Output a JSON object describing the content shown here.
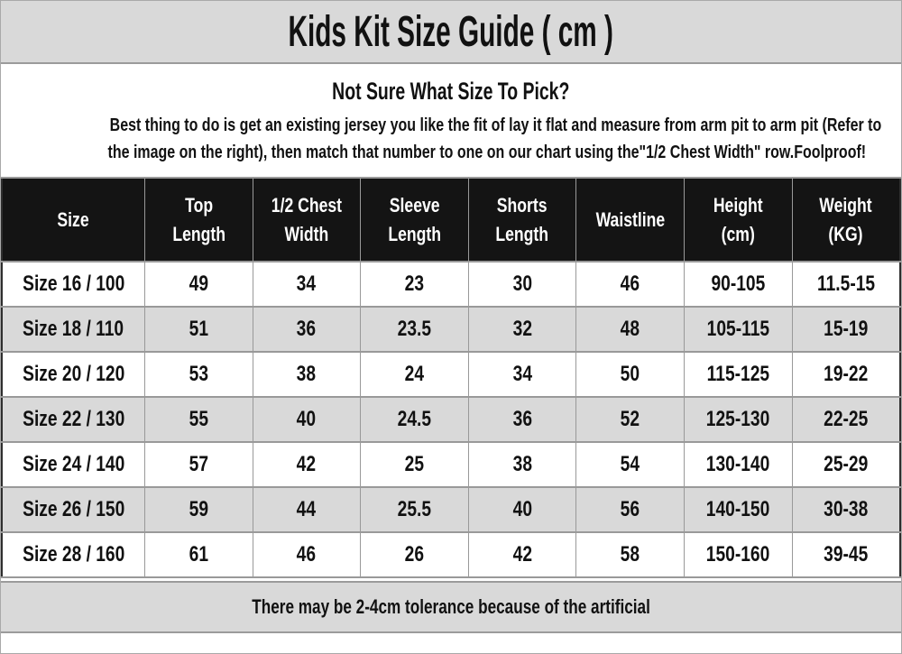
{
  "header": {
    "title": "Kids Kit Size Guide ( cm )"
  },
  "intro": {
    "heading": "Not Sure What Size To Pick?",
    "lines": [
      "Best thing to do is get an existing jersey you like the fit of lay it flat and measure from arm pit to arm pit (Refer to",
      "the image on the right), then match that number to one on our chart using the\"1/2 Chest Width\" row.Foolproof!"
    ]
  },
  "table": {
    "columns": [
      "Size",
      "Top\nLength",
      "1/2 Chest\nWidth",
      "Sleeve\nLength",
      "Shorts\nLength",
      "Waistline",
      "Height\n(cm)",
      "Weight\n(KG)"
    ],
    "rows": [
      [
        "Size 16 / 100",
        "49",
        "34",
        "23",
        "30",
        "46",
        "90-105",
        "11.5-15"
      ],
      [
        "Size 18 / 110",
        "51",
        "36",
        "23.5",
        "32",
        "48",
        "105-115",
        "15-19"
      ],
      [
        "Size 20 / 120",
        "53",
        "38",
        "24",
        "34",
        "50",
        "115-125",
        "19-22"
      ],
      [
        "Size 22 / 130",
        "55",
        "40",
        "24.5",
        "36",
        "52",
        "125-130",
        "22-25"
      ],
      [
        "Size 24 / 140",
        "57",
        "42",
        "25",
        "38",
        "54",
        "130-140",
        "25-29"
      ],
      [
        "Size 26 / 150",
        "59",
        "44",
        "25.5",
        "40",
        "56",
        "140-150",
        "30-38"
      ],
      [
        "Size 28 / 160",
        "61",
        "46",
        "26",
        "42",
        "58",
        "150-160",
        "39-45"
      ]
    ]
  },
  "footer": {
    "note": "There may be 2-4cm tolerance because of the artificial"
  },
  "colors": {
    "band_bg": "#d9d9d9",
    "header_cell_bg": "#141414",
    "header_cell_text": "#ffffff",
    "alt_row_bg": "#d9d9d9",
    "grid_border": "#999999",
    "text": "#111111"
  }
}
